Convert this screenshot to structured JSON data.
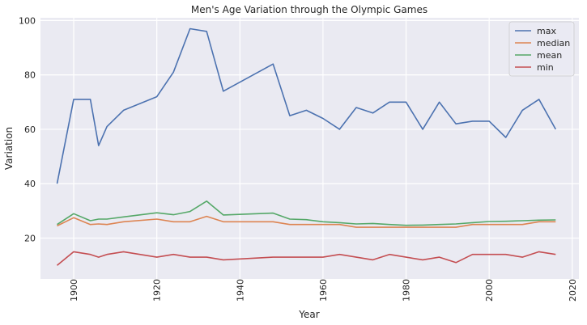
{
  "chart_data": {
    "type": "line",
    "title": "Men's Age Variation through the Olympic Games",
    "xlabel": "Year",
    "ylabel": "Variation",
    "xlim": [
      1892,
      2021.6
    ],
    "ylim": [
      5,
      101
    ],
    "xticks": [
      1900,
      1920,
      1940,
      1960,
      1980,
      2000,
      2020
    ],
    "yticks": [
      20,
      40,
      60,
      80,
      100
    ],
    "grid": true,
    "legend_position": "top-right",
    "x": [
      1896,
      1900,
      1904,
      1906,
      1908,
      1912,
      1920,
      1924,
      1928,
      1932,
      1936,
      1948,
      1952,
      1956,
      1960,
      1964,
      1968,
      1972,
      1976,
      1980,
      1984,
      1988,
      1992,
      1996,
      2000,
      2004,
      2008,
      2012,
      2016
    ],
    "series": [
      {
        "name": "max",
        "color": "#4c72b0",
        "values": [
          40,
          71,
          71,
          54,
          61,
          67,
          72,
          81,
          97,
          96,
          74,
          84,
          65,
          67,
          64,
          60,
          68,
          66,
          70,
          70,
          60,
          70,
          62,
          63,
          63,
          57,
          67,
          71,
          60
        ]
      },
      {
        "name": "median",
        "color": "#dd8452",
        "values": [
          24.5,
          27.5,
          25,
          25.2,
          25,
          26,
          27,
          26,
          26,
          28,
          26,
          26,
          25,
          25,
          25,
          25,
          24,
          24,
          24,
          24,
          24,
          24,
          24,
          25,
          25,
          25,
          25,
          26,
          26
        ]
      },
      {
        "name": "mean",
        "color": "#55a868",
        "values": [
          25,
          29,
          26.4,
          27,
          27,
          27.8,
          29.3,
          28.6,
          29.8,
          33.6,
          28.5,
          29.2,
          27,
          26.8,
          26,
          25.7,
          25.2,
          25.4,
          25,
          24.7,
          24.8,
          25,
          25.2,
          25.7,
          26.1,
          26.2,
          26.4,
          26.6,
          26.7
        ]
      },
      {
        "name": "min",
        "color": "#c44e52",
        "values": [
          10,
          15,
          14,
          13,
          14,
          15,
          13,
          14,
          13,
          13,
          12,
          13,
          13,
          13,
          13,
          14,
          13,
          12,
          14,
          13,
          12,
          13,
          11,
          14,
          14,
          14,
          13,
          15,
          14
        ]
      }
    ]
  }
}
